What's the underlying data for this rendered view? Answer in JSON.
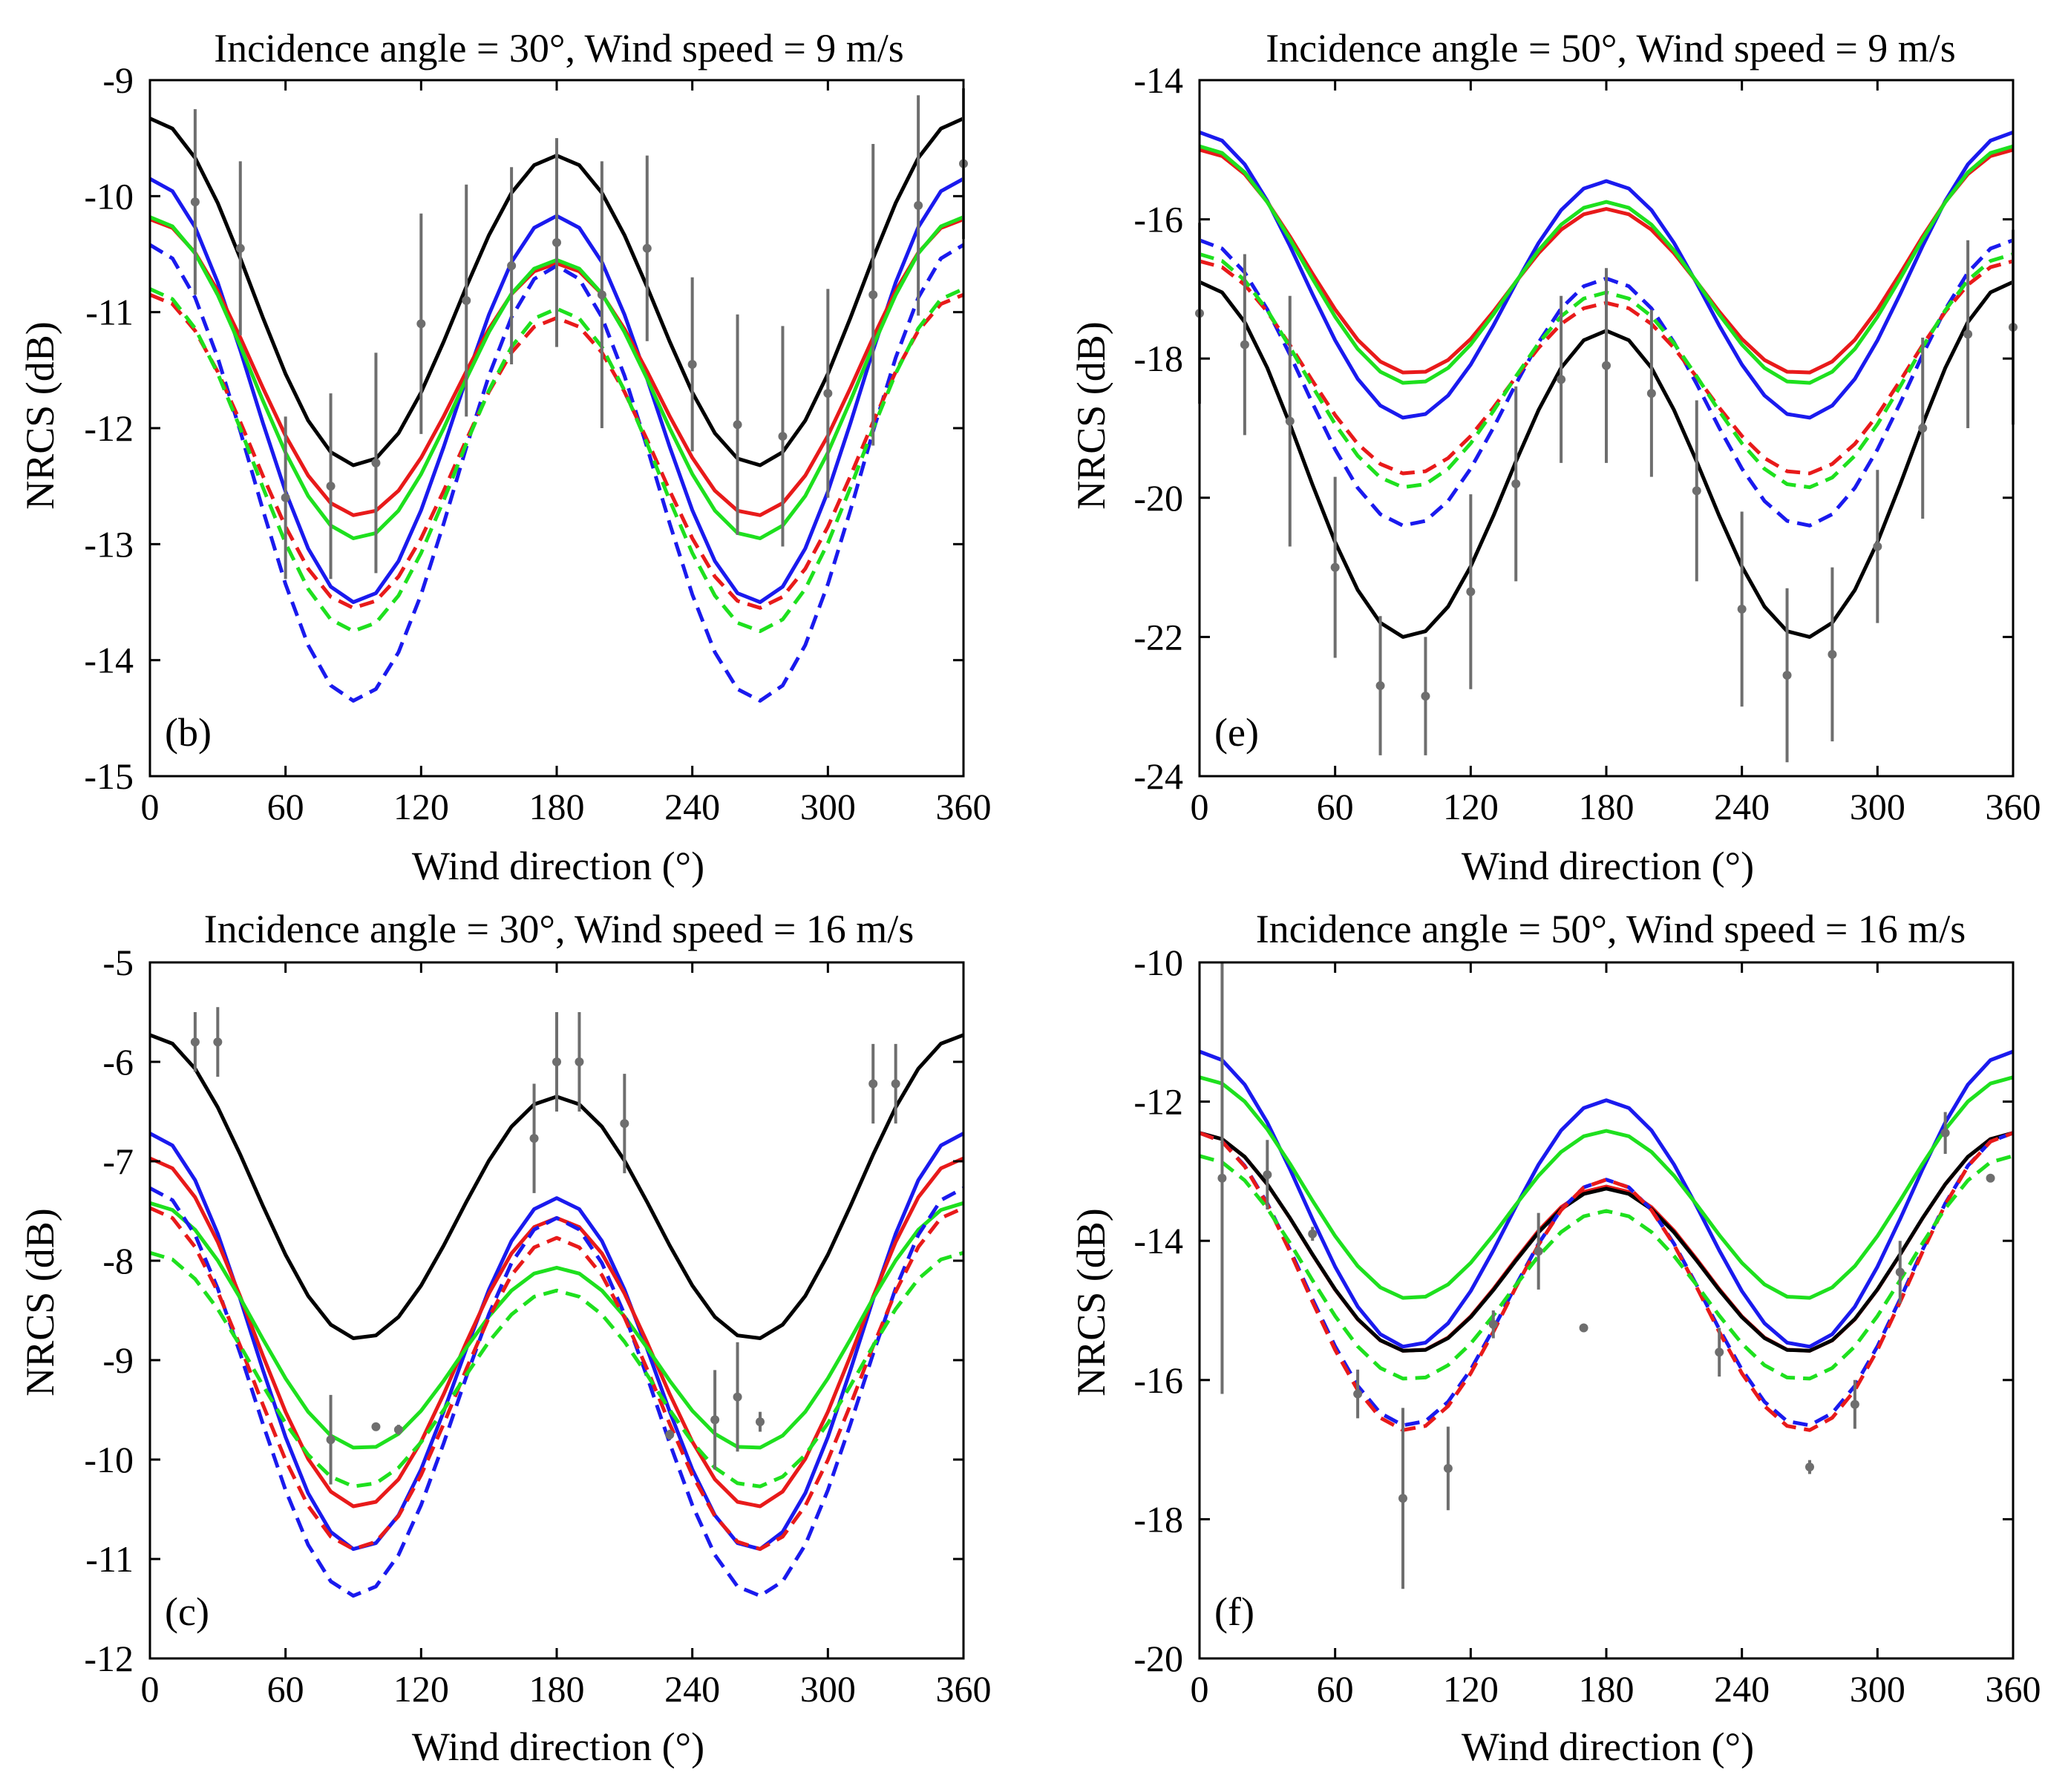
{
  "colors": {
    "black": "#000000",
    "blue": "#1a1aee",
    "red": "#e81a1a",
    "green": "#1ee01e",
    "data_points": "#6e6e6e"
  },
  "chart_data": [
    {
      "type": "line",
      "panel_label": "(b)",
      "title": "Incidence angle = 30°, Wind speed = 9 m/s",
      "xlabel": "Wind direction (°)",
      "ylabel": "NRCS (dB)",
      "xlim": [
        0,
        360
      ],
      "ylim": [
        -15,
        -9
      ],
      "xticks": [
        "0",
        "60",
        "120",
        "180",
        "240",
        "300",
        "360"
      ],
      "yticks": [
        "-9",
        "-10",
        "-11",
        "-12",
        "-13",
        "-14",
        "-15"
      ],
      "series": [
        {
          "name": "black solid",
          "color": "black",
          "dashed": false,
          "up": -9.33,
          "cross": -12.32,
          "down": -9.65
        },
        {
          "name": "blue solid",
          "color": "blue",
          "dashed": false,
          "up": -9.85,
          "cross": -13.5,
          "down": -10.17
        },
        {
          "name": "red solid",
          "color": "red",
          "dashed": false,
          "up": -10.2,
          "cross": -12.75,
          "down": -10.58
        },
        {
          "name": "green solid",
          "color": "green",
          "dashed": false,
          "up": -10.18,
          "cross": -12.95,
          "down": -10.55
        },
        {
          "name": "blue dashed",
          "color": "blue",
          "dashed": true,
          "up": -10.42,
          "cross": -14.35,
          "down": -10.6
        },
        {
          "name": "red dashed",
          "color": "red",
          "dashed": true,
          "up": -10.85,
          "cross": -13.55,
          "down": -11.05
        },
        {
          "name": "green dashed",
          "color": "green",
          "dashed": true,
          "up": -10.8,
          "cross": -13.75,
          "down": -10.97
        }
      ],
      "observations": [
        {
          "x": 20,
          "y": -10.05,
          "err": 0.8
        },
        {
          "x": 40,
          "y": -10.45,
          "err": 0.75
        },
        {
          "x": 60,
          "y": -12.6,
          "err": 0.7
        },
        {
          "x": 80,
          "y": -12.5,
          "err": 0.8
        },
        {
          "x": 100,
          "y": -12.3,
          "err": 0.95
        },
        {
          "x": 120,
          "y": -11.1,
          "err": 0.95
        },
        {
          "x": 140,
          "y": -10.9,
          "err": 1.0
        },
        {
          "x": 160,
          "y": -10.6,
          "err": 0.85
        },
        {
          "x": 180,
          "y": -10.4,
          "err": 0.9
        },
        {
          "x": 200,
          "y": -10.85,
          "err": 1.15
        },
        {
          "x": 220,
          "y": -10.45,
          "err": 0.8
        },
        {
          "x": 240,
          "y": -11.45,
          "err": 0.75
        },
        {
          "x": 260,
          "y": -11.97,
          "err": 0.95
        },
        {
          "x": 280,
          "y": -12.07,
          "err": 0.95
        },
        {
          "x": 300,
          "y": -11.7,
          "err": 0.9
        },
        {
          "x": 320,
          "y": -10.85,
          "err": 1.3
        },
        {
          "x": 340,
          "y": -10.08,
          "err": 0.95
        },
        {
          "x": 360,
          "y": -9.72,
          "err": 0.65
        }
      ]
    },
    {
      "type": "line",
      "panel_label": "(e)",
      "title": "Incidence angle = 50°, Wind speed = 9 m/s",
      "xlabel": "Wind direction (°)",
      "ylabel": "NRCS (dB)",
      "xlim": [
        0,
        360
      ],
      "ylim": [
        -24,
        -14
      ],
      "xticks": [
        "0",
        "60",
        "120",
        "180",
        "240",
        "300",
        "360"
      ],
      "yticks": [
        "-14",
        "-16",
        "-18",
        "-20",
        "-22",
        "-24"
      ],
      "series": [
        {
          "name": "blue solid",
          "color": "blue",
          "dashed": false,
          "up": -14.75,
          "cross": -18.85,
          "down": -15.45
        },
        {
          "name": "red solid",
          "color": "red",
          "dashed": false,
          "up": -15.0,
          "cross": -18.2,
          "down": -15.85
        },
        {
          "name": "green solid",
          "color": "green",
          "dashed": false,
          "up": -14.95,
          "cross": -18.35,
          "down": -15.75
        },
        {
          "name": "black solid",
          "color": "black",
          "dashed": false,
          "up": -16.9,
          "cross": -22.0,
          "down": -17.6
        },
        {
          "name": "blue dashed",
          "color": "blue",
          "dashed": true,
          "up": -16.3,
          "cross": -20.4,
          "down": -16.85
        },
        {
          "name": "red dashed",
          "color": "red",
          "dashed": true,
          "up": -16.6,
          "cross": -19.65,
          "down": -17.2
        },
        {
          "name": "green dashed",
          "color": "green",
          "dashed": true,
          "up": -16.5,
          "cross": -19.85,
          "down": -17.05
        }
      ],
      "observations": [
        {
          "x": 0,
          "y": -17.35,
          "err": 1.3
        },
        {
          "x": 20,
          "y": -17.8,
          "err": 1.3
        },
        {
          "x": 40,
          "y": -18.9,
          "err": 1.8
        },
        {
          "x": 60,
          "y": -21.0,
          "err": 1.3
        },
        {
          "x": 80,
          "y": -22.7,
          "err": 1.0
        },
        {
          "x": 100,
          "y": -22.85,
          "err": 0.85
        },
        {
          "x": 120,
          "y": -21.35,
          "err": 1.4
        },
        {
          "x": 140,
          "y": -19.8,
          "err": 1.4
        },
        {
          "x": 160,
          "y": -18.3,
          "err": 1.2
        },
        {
          "x": 180,
          "y": -18.1,
          "err": 1.4
        },
        {
          "x": 200,
          "y": -18.5,
          "err": 1.2
        },
        {
          "x": 220,
          "y": -19.9,
          "err": 1.3
        },
        {
          "x": 240,
          "y": -21.6,
          "err": 1.4
        },
        {
          "x": 260,
          "y": -22.55,
          "err": 1.25
        },
        {
          "x": 280,
          "y": -22.25,
          "err": 1.25
        },
        {
          "x": 300,
          "y": -20.7,
          "err": 1.1
        },
        {
          "x": 320,
          "y": -19.0,
          "err": 1.3
        },
        {
          "x": 340,
          "y": -17.65,
          "err": 1.35
        },
        {
          "x": 360,
          "y": -17.55,
          "err": 1.4
        }
      ]
    },
    {
      "type": "line",
      "panel_label": "(c)",
      "title": "Incidence angle = 30°, Wind speed = 16 m/s",
      "xlabel": "Wind direction (°)",
      "ylabel": "NRCS (dB)",
      "xlim": [
        0,
        360
      ],
      "ylim": [
        -12,
        -5
      ],
      "xticks": [
        "0",
        "60",
        "120",
        "180",
        "240",
        "300",
        "360"
      ],
      "yticks": [
        "-5",
        "-6",
        "-7",
        "-8",
        "-9",
        "-10",
        "-11",
        "-12"
      ],
      "series": [
        {
          "name": "black solid",
          "color": "black",
          "dashed": false,
          "up": -5.73,
          "cross": -8.78,
          "down": -6.35
        },
        {
          "name": "blue solid",
          "color": "blue",
          "dashed": false,
          "up": -6.72,
          "cross": -10.9,
          "down": -7.37
        },
        {
          "name": "red solid",
          "color": "red",
          "dashed": false,
          "up": -6.97,
          "cross": -10.47,
          "down": -7.57
        },
        {
          "name": "green solid",
          "color": "green",
          "dashed": false,
          "up": -7.42,
          "cross": -9.88,
          "down": -8.07
        },
        {
          "name": "blue dashed",
          "color": "blue",
          "dashed": true,
          "up": -7.27,
          "cross": -11.37,
          "down": -7.57
        },
        {
          "name": "red dashed",
          "color": "red",
          "dashed": true,
          "up": -7.47,
          "cross": -10.9,
          "down": -7.77
        },
        {
          "name": "green dashed",
          "color": "green",
          "dashed": true,
          "up": -7.92,
          "cross": -10.27,
          "down": -8.3
        }
      ],
      "observations": [
        {
          "x": 20,
          "y": -5.8,
          "err": 0.3
        },
        {
          "x": 30,
          "y": -5.8,
          "err": 0.35
        },
        {
          "x": 80,
          "y": -9.8,
          "err": 0.45
        },
        {
          "x": 100,
          "y": -9.67,
          "err": 0
        },
        {
          "x": 110,
          "y": -9.7,
          "err": 0.05
        },
        {
          "x": 170,
          "y": -6.77,
          "err": 0.55
        },
        {
          "x": 180,
          "y": -6.0,
          "err": 0.5
        },
        {
          "x": 190,
          "y": -6.0,
          "err": 0.5
        },
        {
          "x": 210,
          "y": -6.62,
          "err": 0.5
        },
        {
          "x": 230,
          "y": -9.75,
          "err": 0.05
        },
        {
          "x": 250,
          "y": -9.6,
          "err": 0.5
        },
        {
          "x": 260,
          "y": -9.37,
          "err": 0.55
        },
        {
          "x": 270,
          "y": -9.62,
          "err": 0.1
        },
        {
          "x": 320,
          "y": -6.22,
          "err": 0.4
        },
        {
          "x": 330,
          "y": -6.22,
          "err": 0.4
        }
      ]
    },
    {
      "type": "line",
      "panel_label": "(f)",
      "title": "Incidence angle = 50°, Wind speed = 16 m/s",
      "xlabel": "Wind direction (°)",
      "ylabel": "NRCS (dB)",
      "xlim": [
        0,
        360
      ],
      "ylim": [
        -20,
        -10
      ],
      "xticks": [
        "0",
        "60",
        "120",
        "180",
        "240",
        "300",
        "360"
      ],
      "yticks": [
        "-10",
        "-12",
        "-14",
        "-16",
        "-18",
        "-20"
      ],
      "series": [
        {
          "name": "blue solid",
          "color": "blue",
          "dashed": false,
          "up": -11.28,
          "cross": -15.52,
          "down": -11.98
        },
        {
          "name": "green solid",
          "color": "green",
          "dashed": false,
          "up": -11.65,
          "cross": -14.82,
          "down": -12.42
        },
        {
          "name": "red solid",
          "color": "red",
          "dashed": false,
          "up": -12.45,
          "cross": -15.58,
          "down": -13.22
        },
        {
          "name": "black solid",
          "color": "black",
          "dashed": false,
          "up": -12.45,
          "cross": -15.58,
          "down": -13.25
        },
        {
          "name": "blue dashed",
          "color": "blue",
          "dashed": true,
          "up": -12.45,
          "cross": -16.65,
          "down": -13.12
        },
        {
          "name": "red dashed",
          "color": "red",
          "dashed": true,
          "up": -12.45,
          "cross": -16.72,
          "down": -13.12
        },
        {
          "name": "green dashed",
          "color": "green",
          "dashed": true,
          "up": -12.78,
          "cross": -15.98,
          "down": -13.57
        }
      ],
      "observations": [
        {
          "x": 10,
          "y": -13.1,
          "err": 3.1
        },
        {
          "x": 30,
          "y": -13.05,
          "err": 0.5
        },
        {
          "x": 50,
          "y": -13.9,
          "err": 0.1
        },
        {
          "x": 70,
          "y": -16.2,
          "err": 0.35
        },
        {
          "x": 90,
          "y": -17.7,
          "err": 1.3
        },
        {
          "x": 110,
          "y": -17.27,
          "err": 0.6
        },
        {
          "x": 130,
          "y": -15.2,
          "err": 0.2
        },
        {
          "x": 150,
          "y": -14.15,
          "err": 0.55
        },
        {
          "x": 170,
          "y": -15.25,
          "err": 0
        },
        {
          "x": 230,
          "y": -15.6,
          "err": 0.35
        },
        {
          "x": 270,
          "y": -17.25,
          "err": 0.1
        },
        {
          "x": 290,
          "y": -16.35,
          "err": 0.35
        },
        {
          "x": 310,
          "y": -14.45,
          "err": 0.45
        },
        {
          "x": 330,
          "y": -12.45,
          "err": 0.3
        },
        {
          "x": 350,
          "y": -13.1,
          "err": 0.05
        }
      ]
    }
  ]
}
